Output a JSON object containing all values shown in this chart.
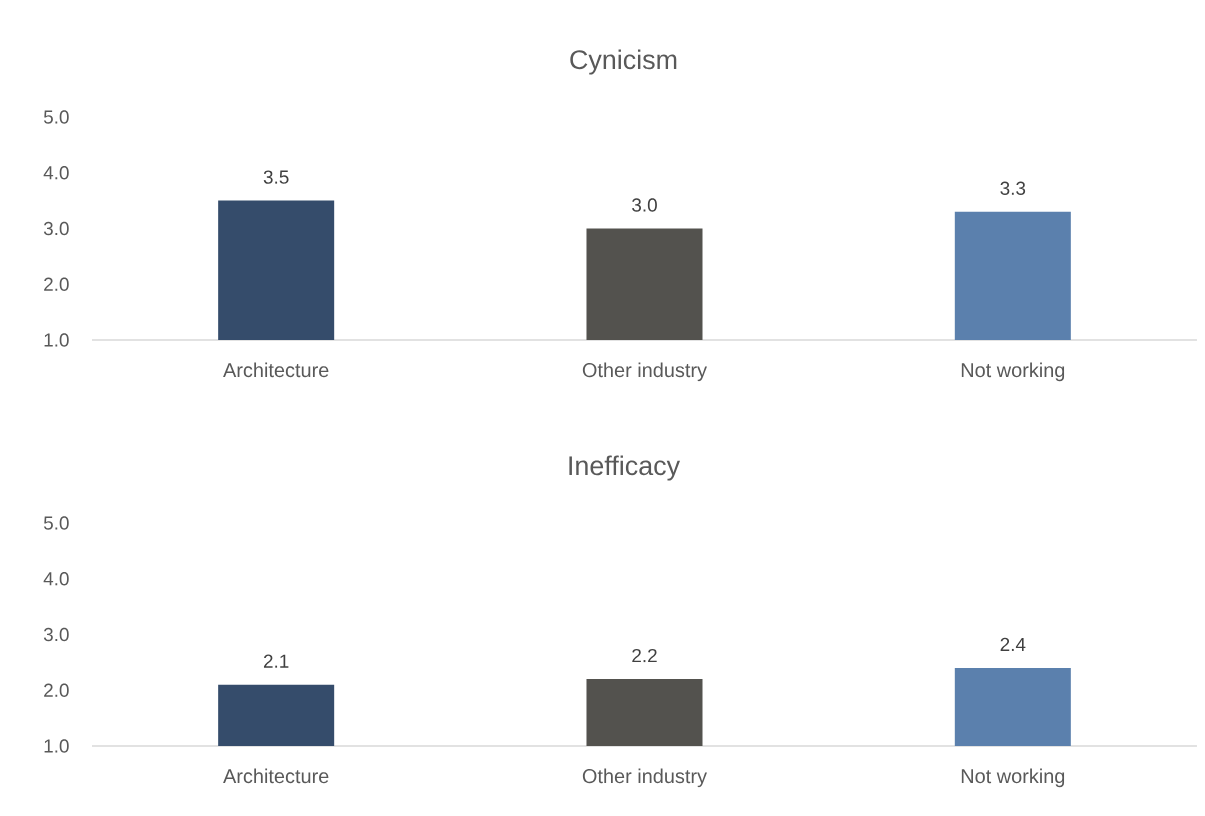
{
  "chart_data": [
    {
      "type": "bar",
      "title": "Cynicism",
      "categories": [
        "Architecture",
        "Other industry",
        "Not working"
      ],
      "values": [
        3.5,
        3.0,
        3.3
      ],
      "value_labels": [
        "3.5",
        "3.0",
        "3.3"
      ],
      "colors": [
        "#354c6b",
        "#53524e",
        "#5b80ad"
      ],
      "ylim": [
        1,
        5
      ],
      "yticks": [
        {
          "value": 1,
          "label": "1.0"
        },
        {
          "value": 2,
          "label": "2.0"
        },
        {
          "value": 3,
          "label": "3.0"
        },
        {
          "value": 4,
          "label": "4.0"
        },
        {
          "value": 5,
          "label": "5.0"
        }
      ]
    },
    {
      "type": "bar",
      "title": "Inefficacy",
      "categories": [
        "Architecture",
        "Other industry",
        "Not working"
      ],
      "values": [
        2.1,
        2.2,
        2.4
      ],
      "value_labels": [
        "2.1",
        "2.2",
        "2.4"
      ],
      "colors": [
        "#354c6b",
        "#53524e",
        "#5b80ad"
      ],
      "ylim": [
        1,
        5
      ],
      "yticks": [
        {
          "value": 1,
          "label": "1.0"
        },
        {
          "value": 2,
          "label": "2.0"
        },
        {
          "value": 3,
          "label": "3.0"
        },
        {
          "value": 4,
          "label": "4.0"
        },
        {
          "value": 5,
          "label": "5.0"
        }
      ]
    }
  ]
}
